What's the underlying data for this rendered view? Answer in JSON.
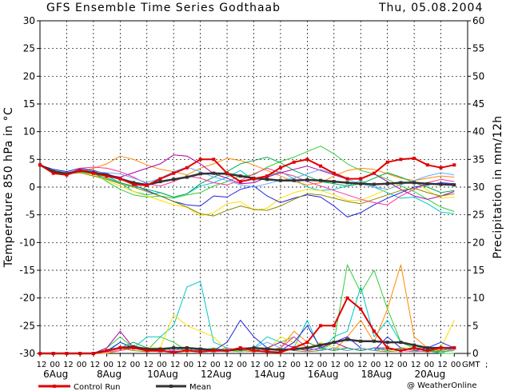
{
  "title": "GFS Ensemble Time Series Godthaab",
  "date": "Thu, 05.08.2004",
  "credit": "@ WeatherOnline",
  "legend": {
    "control_label": "Control Run",
    "mean_label": "Mean",
    "control_color": "#e00000",
    "mean_color": "#333333"
  },
  "colors": {
    "member_palette": [
      "#00c8c8",
      "#33cc33",
      "#ff8800",
      "#ffdd00",
      "#2222dd",
      "#aa00aa",
      "#00aa55",
      "#ff3399",
      "#888800",
      "#66aaff"
    ]
  },
  "chart_data": {
    "type": "line",
    "ylabel_left": "Temperature 850 hPa in °C",
    "ylabel_right": "Precipitation in mm/12h",
    "ylim_left": [
      -30,
      30
    ],
    "ylim_right": [
      0,
      60
    ],
    "yticks_left": [
      "30",
      "25",
      "20",
      "15",
      "10",
      "5",
      "0",
      "-5",
      "-10",
      "-15",
      "-20",
      "-25",
      "-30"
    ],
    "yticks_right": [
      "60",
      "55",
      "50",
      "45",
      "40",
      "35",
      "30",
      "25",
      "20",
      "15",
      "10",
      "5",
      "0"
    ],
    "x_hour_labels": [
      "12",
      "00",
      "12",
      "00",
      "12",
      "00",
      "12",
      "00",
      "12",
      "00",
      "12",
      "00",
      "12",
      "00",
      "12",
      "00",
      "12",
      "00",
      "12",
      "00",
      "12",
      "00",
      "12",
      "00",
      "12",
      "00",
      "12",
      "00",
      "12",
      "00",
      "12",
      "00"
    ],
    "x_tail_label": "GMT",
    "x_tail_suffix": ";",
    "x_date_labels": [
      "6Aug",
      "8Aug",
      "10Aug",
      "12Aug",
      "14Aug",
      "16Aug",
      "18Aug",
      "20Aug"
    ],
    "grid": true,
    "x_steps": 32,
    "temperature": {
      "control": [
        4,
        2.5,
        2.2,
        3,
        2.5,
        2,
        1.5,
        0.5,
        0.3,
        1.5,
        2.5,
        3.5,
        5,
        5,
        2.5,
        1,
        1.5,
        2,
        3.5,
        4.5,
        5,
        3.8,
        2.5,
        1.5,
        1.5,
        2.5,
        4.5,
        5,
        5.2,
        4,
        3.5,
        4
      ],
      "mean": [
        4,
        2.8,
        2.4,
        3,
        2.6,
        2.2,
        1.5,
        0.8,
        0.4,
        1,
        1.4,
        1.8,
        2.4,
        2.5,
        2.4,
        2,
        1.6,
        1.4,
        1.2,
        1.2,
        1.3,
        1.2,
        1,
        0.8,
        0.6,
        0.5,
        0.6,
        0.8,
        0.8,
        0.6,
        0.5,
        0.4
      ],
      "members": [
        [
          4,
          3,
          2.4,
          3.2,
          2.8,
          2,
          0.8,
          -0.8,
          -1.4,
          -1,
          -1.8,
          -1.2,
          0.2,
          0.8,
          1.8,
          3,
          1.2,
          2,
          2.8,
          1.5,
          0,
          -0.6,
          -0.4,
          0.2,
          1.2,
          0,
          -1,
          -2,
          -1.8,
          -3,
          -4.5,
          -4.8
        ],
        [
          4,
          2.8,
          2.6,
          3,
          2.6,
          1,
          -0.4,
          -1.4,
          -1.8,
          -1.6,
          -2,
          -1.4,
          -1,
          0.2,
          1,
          2,
          2.2,
          3.6,
          4.6,
          5.4,
          6.4,
          7.4,
          6,
          4.2,
          3,
          2.4,
          1.4,
          0.2,
          -0.8,
          -2.2,
          -3.6,
          -4.4
        ],
        [
          4,
          2.6,
          2.2,
          2.8,
          3.4,
          4.2,
          5.6,
          5,
          4,
          3.2,
          2.8,
          2.2,
          3.4,
          4.2,
          5.2,
          4.8,
          4,
          3,
          2,
          1,
          0.4,
          0.8,
          2,
          3,
          3.4,
          3.2,
          2.4,
          1.6,
          1.2,
          1.6,
          2,
          1.8
        ],
        [
          4,
          3,
          2.6,
          2.8,
          2.2,
          1.2,
          0.2,
          -0.8,
          -1.6,
          -2.4,
          -3.2,
          -3.6,
          -5.2,
          -4.6,
          -3,
          -2.6,
          -4.2,
          -3.8,
          -2,
          -1,
          -0.4,
          -0.6,
          -1.4,
          -2.4,
          -2.4,
          -1.4,
          -0.4,
          0.6,
          1.2,
          -0.6,
          -2,
          -1.8
        ],
        [
          4,
          3.2,
          2.8,
          3.4,
          3,
          2.4,
          1.6,
          0.4,
          -0.6,
          -1.6,
          -2.6,
          -3.2,
          -3.4,
          -1.6,
          -1.8,
          -0.4,
          0.2,
          -1.6,
          -2.8,
          -2,
          -1.4,
          -1.8,
          -3.4,
          -5.4,
          -4.6,
          -3.2,
          -2,
          -1,
          0,
          0.4,
          0.8,
          0.6
        ],
        [
          4,
          2.6,
          2.4,
          3,
          2.6,
          2.2,
          1.8,
          2.6,
          3.4,
          4.2,
          5.8,
          5.6,
          4.2,
          2.4,
          1.6,
          0.6,
          0.8,
          1.8,
          2.6,
          3.2,
          3.8,
          3,
          2.2,
          1.4,
          1.6,
          2.4,
          1,
          -0.4,
          -1.6,
          -2.2,
          -1.6,
          -0.8
        ],
        [
          4,
          3,
          2.6,
          2.8,
          2.4,
          1.6,
          0.8,
          0.2,
          -0.4,
          -1,
          -1.8,
          -1.2,
          0.6,
          1.8,
          2.8,
          4.2,
          4.8,
          5.4,
          4.4,
          3,
          2,
          1,
          0.6,
          0.2,
          0.6,
          1.6,
          2.6,
          1.8,
          0.8,
          0,
          -1,
          -0.6
        ],
        [
          4,
          2.8,
          2.2,
          3.4,
          3.6,
          3.4,
          2.8,
          1.8,
          0.6,
          0.2,
          1,
          2,
          1.6,
          0.8,
          0.4,
          1.2,
          2.4,
          3.4,
          2.6,
          2,
          1,
          0.2,
          -0.6,
          -1.4,
          -2.2,
          -2.8,
          -3.2,
          -1.6,
          -0.4,
          0.8,
          1.4,
          1
        ],
        [
          4,
          3,
          2.4,
          2.6,
          2,
          1.4,
          0.6,
          0,
          -0.8,
          -1.6,
          -2.6,
          -3.6,
          -4.8,
          -5.2,
          -4.2,
          -3.4,
          -4,
          -4.2,
          -3.4,
          -2.2,
          -1.2,
          -1.4,
          -2,
          -2.6,
          -3,
          -2.2,
          -1.4,
          -0.6,
          -0.2,
          -1,
          -1.6,
          -1.2
        ],
        [
          4,
          2.8,
          2.6,
          3,
          2.8,
          2.6,
          2.4,
          1.6,
          0.8,
          1.6,
          2.8,
          3.6,
          2.8,
          1.8,
          1.2,
          0.4,
          0,
          0.6,
          1.2,
          1.6,
          2.4,
          3.2,
          2.4,
          1.4,
          0.6,
          0,
          -0.4,
          0.4,
          1.2,
          2,
          2.6,
          2.2
        ]
      ]
    },
    "precipitation": {
      "control": [
        0,
        0,
        0,
        0,
        0,
        0.5,
        1,
        1,
        0.5,
        0.5,
        0.2,
        0.5,
        0.3,
        0.5,
        0.5,
        1,
        0.5,
        0.3,
        0.2,
        1,
        2,
        5,
        5,
        10,
        8,
        4,
        1,
        0.5,
        1,
        0.5,
        1,
        1
      ],
      "mean": [
        0,
        0,
        0,
        0,
        0,
        0.5,
        1,
        1.2,
        0.8,
        0.8,
        1,
        1,
        0.8,
        0.6,
        0.5,
        0.8,
        1,
        0.8,
        0.6,
        0.8,
        1,
        1.5,
        2,
        2.5,
        2.2,
        2.2,
        2,
        2,
        1.5,
        1,
        1,
        1
      ],
      "members": [
        [
          0,
          0,
          0,
          0,
          0,
          0.5,
          2,
          1,
          3,
          3,
          5,
          12,
          13,
          2,
          1,
          0.5,
          1,
          3,
          2,
          1,
          6,
          0.5,
          3,
          4,
          12,
          3,
          6,
          2,
          1,
          0.5,
          0,
          1
        ],
        [
          0,
          0,
          0,
          0,
          0,
          1,
          3,
          1,
          0.5,
          3,
          2,
          0.5,
          0.5,
          1,
          0.5,
          0.3,
          1,
          1,
          2,
          3,
          1,
          0.5,
          2,
          16,
          11,
          15,
          8,
          2,
          1,
          1,
          0,
          0
        ],
        [
          0,
          0,
          0,
          0,
          0,
          0,
          0.5,
          1,
          0.5,
          0.3,
          0.5,
          1,
          0.5,
          0.3,
          1,
          0.5,
          1,
          0.5,
          1,
          4,
          2,
          1,
          0.5,
          3,
          6,
          2,
          8,
          16,
          3,
          1,
          0.5,
          1
        ],
        [
          0,
          0,
          0,
          0,
          0,
          0.5,
          1,
          2,
          1,
          1,
          7,
          5,
          4,
          3,
          0.5,
          0.5,
          1,
          0.5,
          3,
          2,
          1,
          2,
          1,
          1,
          0.5,
          1,
          0.5,
          1,
          1,
          0.5,
          1,
          6
        ],
        [
          0,
          0,
          0,
          0,
          0,
          0.3,
          2,
          1,
          0.5,
          0.5,
          1,
          0.5,
          0.3,
          0.5,
          2,
          6,
          3,
          1,
          0.5,
          2,
          5,
          1,
          2,
          3,
          1,
          0.5,
          3,
          1,
          0.5,
          1,
          2,
          1
        ],
        [
          0,
          0,
          0,
          0,
          0,
          1,
          4,
          1,
          0.5,
          0.3,
          0.5,
          1,
          0.5,
          0.3,
          0.5,
          1,
          0.5,
          1,
          2,
          1,
          0.5,
          1,
          2,
          1,
          0.5,
          1,
          1,
          0.5,
          1,
          0.5,
          1,
          1
        ],
        [
          0,
          0,
          0,
          0,
          0,
          0.5,
          1,
          2,
          1,
          0.5,
          0.3,
          0.5,
          1,
          0.5,
          0.3,
          1,
          0.5,
          1,
          0.5,
          1,
          2,
          1,
          0.5,
          1,
          0.5,
          1,
          0.5,
          1,
          0.5,
          0.3,
          0.5,
          1
        ],
        [
          0,
          0,
          0,
          0,
          0,
          0.3,
          0.5,
          1,
          0.5,
          0.3,
          0.5,
          1,
          0.5,
          0.3,
          0.5,
          1,
          1,
          0.5,
          1,
          3,
          1,
          0.5,
          1,
          0.5,
          1,
          0.5,
          1,
          0.5,
          0.3,
          0.5,
          1,
          0.5
        ],
        [
          0,
          0,
          0,
          0,
          0,
          0.5,
          1,
          0.5,
          0.3,
          0.5,
          1,
          0.5,
          0.3,
          0.5,
          1,
          0.5,
          0.3,
          0.5,
          1,
          0.5,
          0.3,
          0.5,
          1,
          0.5,
          1,
          0.5,
          0.3,
          0.5,
          1,
          0.5,
          0.3,
          0.5
        ],
        [
          0,
          0,
          0,
          0,
          0,
          0.5,
          1,
          1,
          0.5,
          1,
          0.5,
          1,
          0.5,
          0.5,
          1,
          0.5,
          1,
          2,
          1,
          0.5,
          1,
          0.5,
          1,
          0.5,
          1,
          0.5,
          1,
          0.5,
          1,
          0.5,
          1,
          0.5
        ]
      ]
    }
  }
}
